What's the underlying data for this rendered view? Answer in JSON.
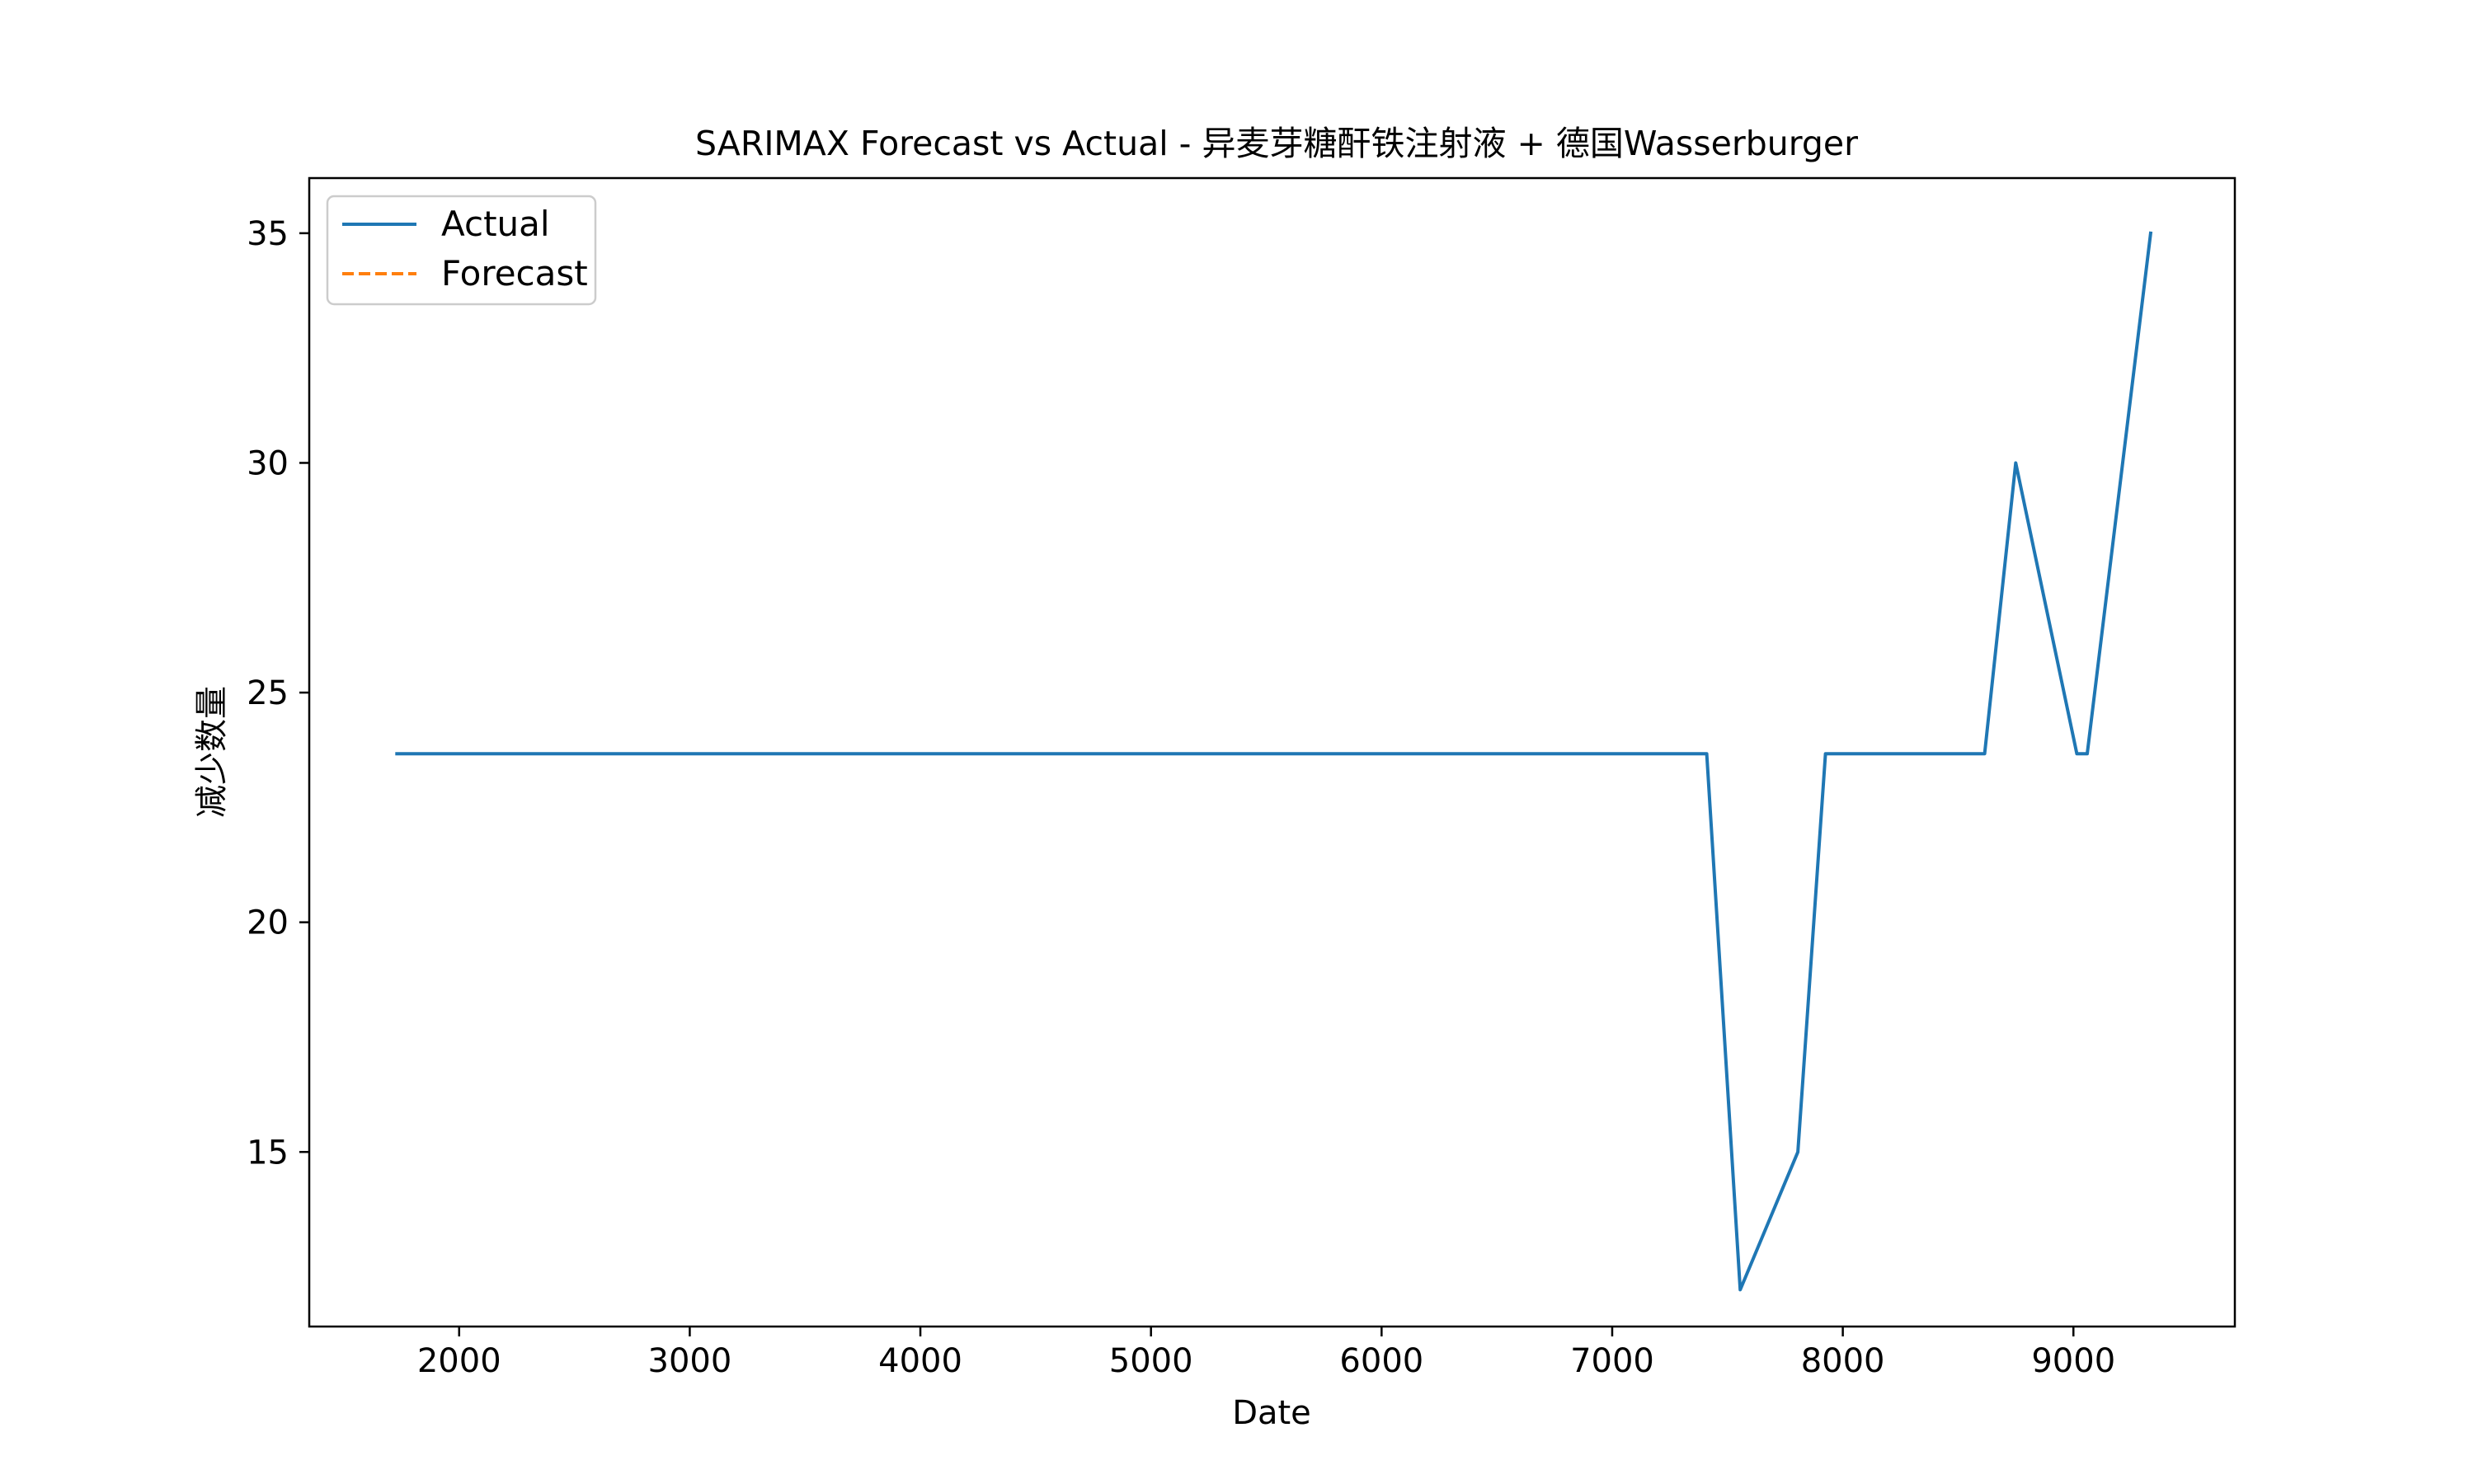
{
  "chart_data": {
    "type": "line",
    "title": "SARIMAX Forecast vs Actual - 异麦芽糖酐铁注射液 + 德国Wasserburger",
    "xlabel": "Date",
    "ylabel": "减少数量",
    "xlim": [
      1350,
      9700
    ],
    "ylim": [
      11.2,
      36.2
    ],
    "xticks": [
      2000,
      3000,
      4000,
      5000,
      6000,
      7000,
      8000,
      9000
    ],
    "yticks": [
      15,
      20,
      25,
      30,
      35
    ],
    "grid": false,
    "legend_position": "top-left",
    "series": [
      {
        "name": "Actual",
        "color": "#1f77b4",
        "style": "solid",
        "points": [
          {
            "x": 1730,
            "y": 23.67
          },
          {
            "x": 7410,
            "y": 23.67
          },
          {
            "x": 7555,
            "y": 12.0
          },
          {
            "x": 7805,
            "y": 15.0
          },
          {
            "x": 7925,
            "y": 23.67
          },
          {
            "x": 8615,
            "y": 23.67
          },
          {
            "x": 8750,
            "y": 30.0
          },
          {
            "x": 9015,
            "y": 23.67
          },
          {
            "x": 9060,
            "y": 23.67
          },
          {
            "x": 9335,
            "y": 35.0
          }
        ]
      },
      {
        "name": "Forecast",
        "color": "#ff7f0e",
        "style": "dashed",
        "points": []
      }
    ]
  }
}
